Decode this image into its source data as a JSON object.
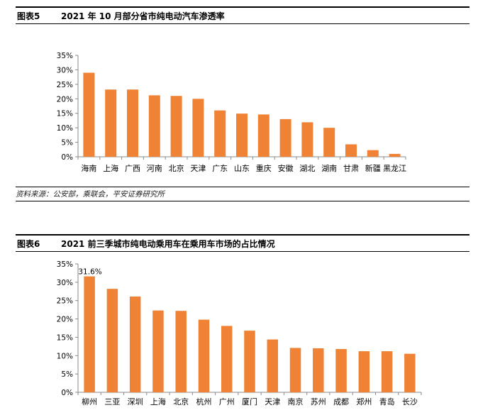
{
  "colors": {
    "bar": "#F08235",
    "axis": "#888888"
  },
  "fig5": {
    "label": "图表5",
    "title": "2021 年 10 月部分省市纯电动汽车渗透率",
    "source": "资料来源：公安部，乘联会，平安证券研究所"
  },
  "fig6": {
    "label": "图表6",
    "title": "2021 前三季城市纯电动乘用车在乘用车市场的占比情况"
  },
  "chart_data": [
    {
      "type": "bar",
      "title": "2021 年 10 月部分省市纯电动汽车渗透率",
      "categories": [
        "海南",
        "上海",
        "广西",
        "河南",
        "北京",
        "天津",
        "广东",
        "山东",
        "重庆",
        "安徽",
        "湖北",
        "湖南",
        "甘肃",
        "新疆",
        "黑龙江"
      ],
      "values": [
        29.0,
        23.2,
        23.2,
        21.2,
        21.0,
        20.0,
        16.0,
        14.9,
        14.6,
        13.0,
        11.9,
        10.0,
        4.3,
        2.3,
        1.0
      ],
      "ylim": [
        0,
        35
      ],
      "yticks": [
        "0%",
        "5%",
        "10%",
        "15%",
        "20%",
        "25%",
        "30%",
        "35%"
      ],
      "xlabel": "",
      "ylabel": "",
      "unit": "%",
      "grid": false,
      "legend": "none"
    },
    {
      "type": "bar",
      "title": "2021 前三季城市纯电动乘用车在乘用车市场的占比情况",
      "categories": [
        "柳州",
        "三亚",
        "深圳",
        "上海",
        "北京",
        "杭州",
        "广州",
        "厦门",
        "天津",
        "南京",
        "苏州",
        "成都",
        "郑州",
        "青岛",
        "长沙"
      ],
      "values": [
        31.6,
        28.2,
        26.1,
        22.3,
        22.2,
        19.8,
        18.1,
        16.8,
        14.4,
        12.1,
        12.0,
        11.8,
        11.2,
        11.2,
        10.5
      ],
      "data_labels": [
        "31.6%",
        "",
        "",
        "",
        "",
        "",
        "",
        "",
        "",
        "",
        "",
        "",
        "",
        "",
        ""
      ],
      "ylim": [
        0,
        35
      ],
      "yticks": [
        "0%",
        "5%",
        "10%",
        "15%",
        "20%",
        "25%",
        "30%",
        "35%"
      ],
      "xlabel": "",
      "ylabel": "",
      "unit": "%",
      "grid": false,
      "legend": "none"
    }
  ]
}
